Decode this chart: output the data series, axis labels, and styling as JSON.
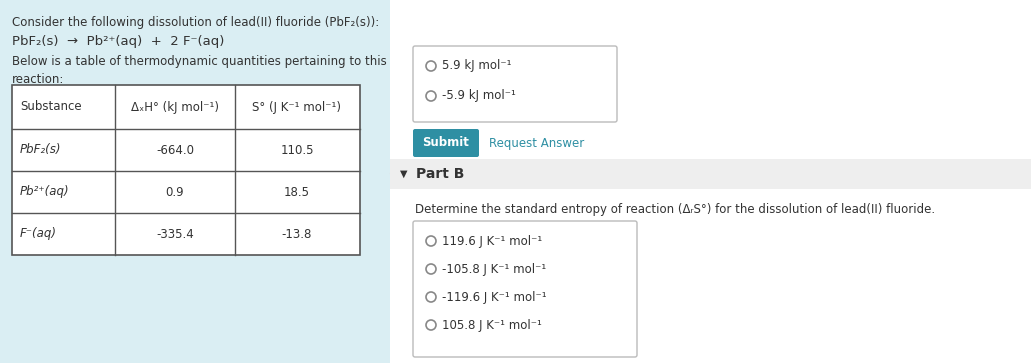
{
  "bg_left": "#daeef3",
  "bg_right": "#ffffff",
  "title_text": "Consider the following dissolution of lead(II) fluoride (PbF₂(s)):",
  "reaction": "PbF₂(s)  →  Pb²⁺(aq)  +  2 F⁻(aq)",
  "table_intro": "Below is a table of thermodynamic quantities pertaining to this\nreaction:",
  "col_headers": [
    "Substance",
    "ΔₓH° (kJ mol⁻¹)",
    "S° (J K⁻¹ mol⁻¹)"
  ],
  "table_data": [
    [
      "PbF₂(s)",
      "-664.0",
      "110.5"
    ],
    [
      "Pb²⁺(aq)",
      "0.9",
      "18.5"
    ],
    [
      "F⁻(aq)",
      "-335.4",
      "-13.8"
    ]
  ],
  "partA_options": [
    "5.9 kJ mol⁻¹",
    "-5.9 kJ mol⁻¹"
  ],
  "submit_btn_color": "#2e8fa3",
  "submit_text": "Submit",
  "request_answer_text": "Request Answer",
  "request_answer_color": "#2e8fa3",
  "partB_label": "Part B",
  "partB_question": "Determine the standard entropy of reaction (ΔᵣS°) for the dissolution of lead(II) fluoride.",
  "partB_options": [
    "119.6 J K⁻¹ mol⁻¹",
    "-105.8 J K⁻¹ mol⁻¹",
    "-119.6 J K⁻¹ mol⁻¹",
    "105.8 J K⁻¹ mol⁻¹"
  ],
  "text_color": "#333333",
  "table_border_color": "#555555"
}
